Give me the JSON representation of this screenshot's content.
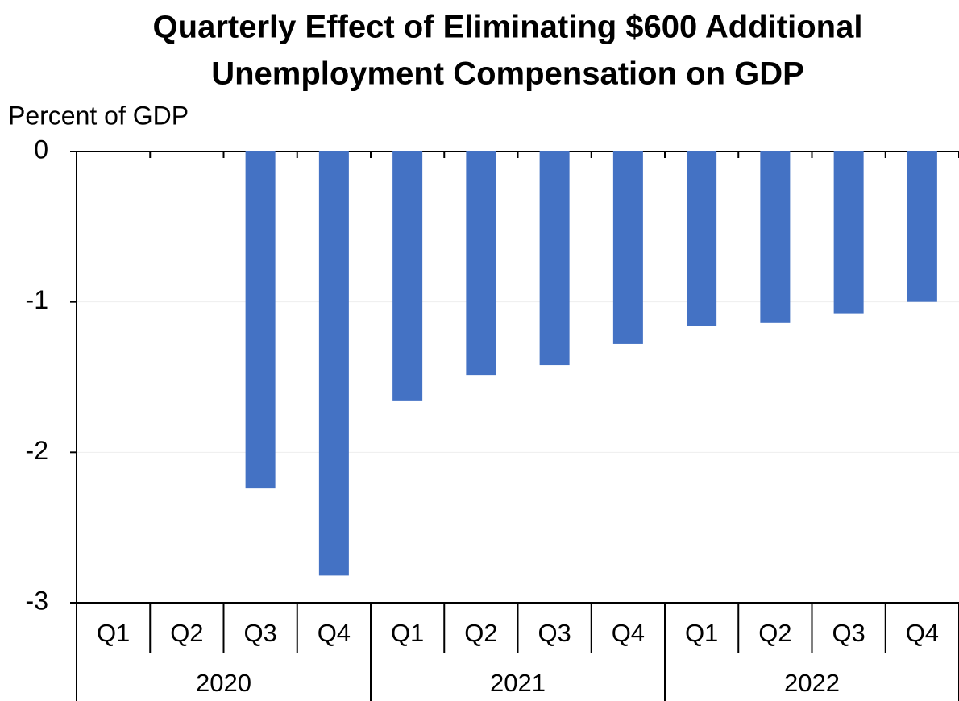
{
  "chart_data": {
    "type": "bar",
    "title_lines": [
      "Quarterly Effect of Eliminating $600 Additional",
      "Unemployment Compensation on GDP"
    ],
    "y_axis_label": "Percent of GDP",
    "categories": [
      "Q1",
      "Q2",
      "Q3",
      "Q4",
      "Q1",
      "Q2",
      "Q3",
      "Q4",
      "Q1",
      "Q2",
      "Q3",
      "Q4"
    ],
    "category_groups": [
      "2020",
      "2021",
      "2022"
    ],
    "values": [
      0,
      0,
      -2.24,
      -2.82,
      -1.66,
      -1.49,
      -1.42,
      -1.28,
      -1.16,
      -1.14,
      -1.08,
      -1.0
    ],
    "color": "#4472c4",
    "ylim": [
      -3,
      0
    ],
    "yticks": [
      0,
      -1,
      -2,
      -3
    ],
    "grid": true
  }
}
